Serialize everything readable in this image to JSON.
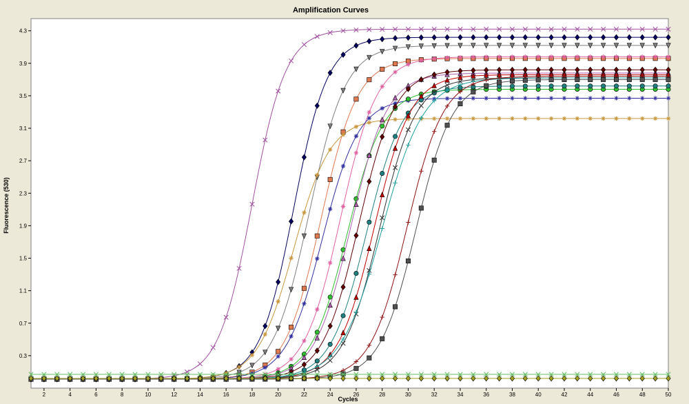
{
  "chart_data": {
    "type": "line",
    "title": "Amplification Curves",
    "xlabel": "Cycles",
    "ylabel": "Fluorescence (530)",
    "xlim": [
      1,
      50
    ],
    "ylim": [
      -0.1,
      4.45
    ],
    "x_ticks": [
      2,
      4,
      6,
      8,
      10,
      12,
      14,
      16,
      18,
      20,
      22,
      24,
      26,
      28,
      30,
      32,
      34,
      36,
      38,
      40,
      42,
      44,
      46,
      48,
      50
    ],
    "y_ticks": [
      0.3,
      0.7,
      1.1,
      1.5,
      1.9,
      2.3,
      2.7,
      3.1,
      3.5,
      3.9,
      4.3
    ],
    "x_tick_labels": [
      "2",
      "4",
      "6",
      "8",
      "10",
      "12",
      "14",
      "16",
      "18",
      "20",
      "22",
      "24",
      "26",
      "28",
      "30",
      "32",
      "34",
      "36",
      "38",
      "40",
      "42",
      "44",
      "46",
      "48",
      "50"
    ],
    "y_tick_labels": [
      "0.3",
      "0.7",
      "1.1",
      "1.5",
      "1.9",
      "2.3",
      "2.7",
      "3.1",
      "3.5",
      "3.9",
      "4.3"
    ],
    "grid": false,
    "legend": "none",
    "curve_model": "sigmoid: y = base + (plateau - base) / (1 + exp(-(x - midpoint) / slope))",
    "series": [
      {
        "color": "#a050a0",
        "marker": "x",
        "base": 0.01,
        "plateau": 4.32,
        "midpoint": 18.0,
        "slope": 1.3
      },
      {
        "color": "#000060",
        "marker": "diamond",
        "base": 0.01,
        "plateau": 4.22,
        "midpoint": 21.2,
        "slope": 1.3
      },
      {
        "color": "#808080",
        "marker": "triangle-down",
        "base": 0.01,
        "plateau": 4.12,
        "midpoint": 22.4,
        "slope": 1.4
      },
      {
        "color": "#e07850",
        "marker": "square",
        "base": 0.01,
        "plateau": 3.96,
        "midpoint": 23.3,
        "slope": 1.4
      },
      {
        "color": "#e060a0",
        "marker": "asterisk",
        "base": 0.01,
        "plateau": 3.98,
        "midpoint": 24.8,
        "slope": 1.4
      },
      {
        "color": "#c8963c",
        "marker": "asterisk",
        "base": 0.01,
        "plateau": 3.22,
        "midpoint": 21.2,
        "slope": 1.4
      },
      {
        "color": "#3030a0",
        "marker": "asterisk",
        "base": 0.01,
        "plateau": 3.47,
        "midpoint": 23.4,
        "slope": 1.4
      },
      {
        "color": "#30c030",
        "marker": "circle",
        "base": 0.01,
        "plateau": 3.58,
        "midpoint": 25.3,
        "slope": 1.4
      },
      {
        "color": "#b060b0",
        "marker": "triangle",
        "base": 0.01,
        "plateau": 3.78,
        "midpoint": 25.6,
        "slope": 1.4
      },
      {
        "color": "#600000",
        "marker": "diamond",
        "base": 0.01,
        "plateau": 3.82,
        "midpoint": 26.2,
        "slope": 1.4
      },
      {
        "color": "#208080",
        "marker": "circle",
        "base": 0.01,
        "plateau": 3.62,
        "midpoint": 26.8,
        "slope": 1.4
      },
      {
        "color": "#c00000",
        "marker": "triangle",
        "base": 0.01,
        "plateau": 3.76,
        "midpoint": 27.4,
        "slope": 1.4
      },
      {
        "color": "#303030",
        "marker": "x",
        "base": 0.01,
        "plateau": 3.72,
        "midpoint": 27.8,
        "slope": 1.4
      },
      {
        "color": "#20a0a0",
        "marker": "plus",
        "base": 0.01,
        "plateau": 3.72,
        "midpoint": 28.0,
        "slope": 1.6
      },
      {
        "color": "#901010",
        "marker": "plus",
        "base": 0.01,
        "plateau": 3.74,
        "midpoint": 29.9,
        "slope": 1.4
      },
      {
        "color": "#505050",
        "marker": "square",
        "base": 0.01,
        "plateau": 3.7,
        "midpoint": 30.6,
        "slope": 1.4
      },
      {
        "color": "#60c060",
        "marker": "x",
        "base": 0.01,
        "plateau": 0.07,
        "midpoint": 100,
        "slope": 1,
        "flat": 0.07
      },
      {
        "color": "#a0a020",
        "marker": "diamond",
        "base": 0.02,
        "plateau": 0.02,
        "midpoint": 100,
        "slope": 1,
        "flat": 0.02
      }
    ]
  }
}
